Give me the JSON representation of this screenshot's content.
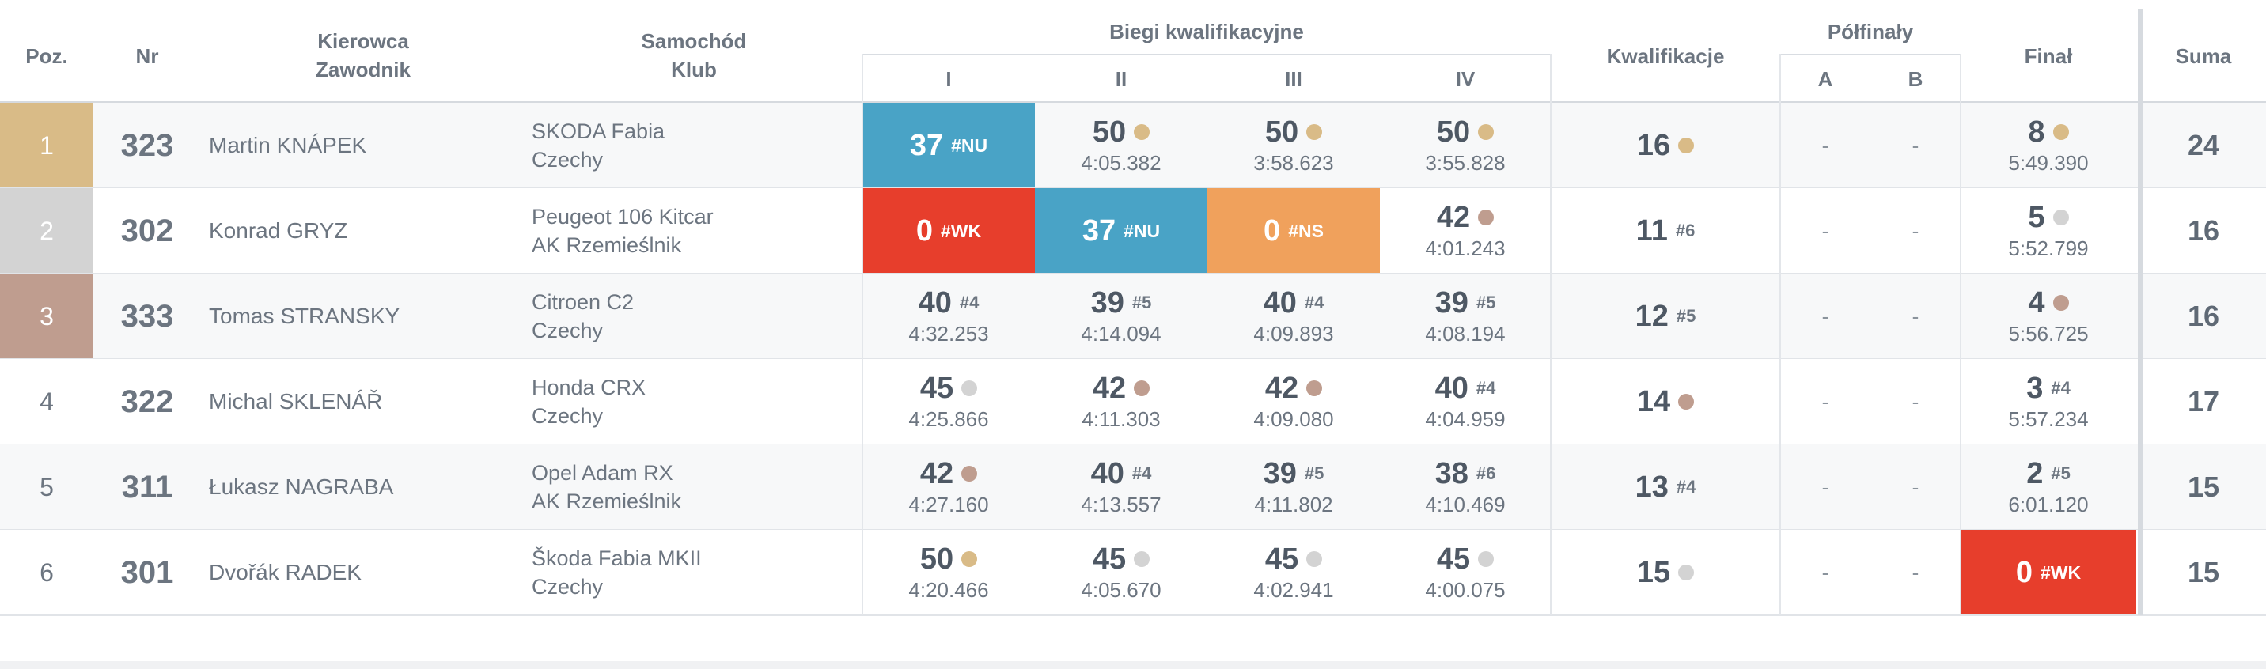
{
  "headers": {
    "pos": "Poz.",
    "nr": "Nr",
    "driver_line1": "Kierowca",
    "driver_line2": "Zawodnik",
    "car_line1": "Samochód",
    "car_line2": "Klub",
    "heats_group": "Biegi kwalifikacyjne",
    "heat_names": [
      "I",
      "II",
      "III",
      "IV"
    ],
    "qualification": "Kwalifikacje",
    "semifinals": "Półfinały",
    "semi_a": "A",
    "semi_b": "B",
    "final": "Finał",
    "sum": "Suma"
  },
  "colors": {
    "gold": "#d9bb87",
    "silver": "#d3d3d3",
    "bronze": "#bf9d8f",
    "status_nu": "#49a3c6",
    "status_wk": "#e73e2c",
    "status_ns": "#f0a15c"
  },
  "rows": [
    {
      "pos": "1",
      "medal": "gold",
      "nr": "323",
      "name": "Martin KNÁPEK",
      "car": "SKODA Fabia",
      "club": "Czechy",
      "heats": [
        {
          "points": "37",
          "rank": "#NU",
          "status": "nu",
          "time": ""
        },
        {
          "points": "50",
          "medal": "gold",
          "time": "4:05.382"
        },
        {
          "points": "50",
          "medal": "gold",
          "time": "3:58.623"
        },
        {
          "points": "50",
          "medal": "gold",
          "time": "3:55.828"
        }
      ],
      "qualification": {
        "points": "16",
        "medal": "gold"
      },
      "semi_a": "-",
      "semi_b": "-",
      "final": {
        "points": "8",
        "medal": "gold",
        "time": "5:49.390"
      },
      "sum": "24"
    },
    {
      "pos": "2",
      "medal": "silver",
      "nr": "302",
      "name": "Konrad GRYZ",
      "car": "Peugeot 106 Kitcar",
      "club": "AK Rzemieślnik",
      "heats": [
        {
          "points": "0",
          "rank": "#WK",
          "status": "wk",
          "time": ""
        },
        {
          "points": "37",
          "rank": "#NU",
          "status": "nu",
          "time": ""
        },
        {
          "points": "0",
          "rank": "#NS",
          "status": "ns",
          "time": ""
        },
        {
          "points": "42",
          "medal": "bronze",
          "time": "4:01.243"
        }
      ],
      "qualification": {
        "points": "11",
        "rank": "#6"
      },
      "semi_a": "-",
      "semi_b": "-",
      "final": {
        "points": "5",
        "medal": "silver",
        "time": "5:52.799"
      },
      "sum": "16"
    },
    {
      "pos": "3",
      "medal": "bronze",
      "nr": "333",
      "name": "Tomas STRANSKY",
      "car": "Citroen C2",
      "club": "Czechy",
      "heats": [
        {
          "points": "40",
          "rank": "#4",
          "time": "4:32.253"
        },
        {
          "points": "39",
          "rank": "#5",
          "time": "4:14.094"
        },
        {
          "points": "40",
          "rank": "#4",
          "time": "4:09.893"
        },
        {
          "points": "39",
          "rank": "#5",
          "time": "4:08.194"
        }
      ],
      "qualification": {
        "points": "12",
        "rank": "#5"
      },
      "semi_a": "-",
      "semi_b": "-",
      "final": {
        "points": "4",
        "medal": "bronze",
        "time": "5:56.725"
      },
      "sum": "16"
    },
    {
      "pos": "4",
      "nr": "322",
      "name": "Michal SKLENÁŘ",
      "car": "Honda CRX",
      "club": "Czechy",
      "heats": [
        {
          "points": "45",
          "medal": "silver",
          "time": "4:25.866"
        },
        {
          "points": "42",
          "medal": "bronze",
          "time": "4:11.303"
        },
        {
          "points": "42",
          "medal": "bronze",
          "time": "4:09.080"
        },
        {
          "points": "40",
          "rank": "#4",
          "time": "4:04.959"
        }
      ],
      "qualification": {
        "points": "14",
        "medal": "bronze"
      },
      "semi_a": "-",
      "semi_b": "-",
      "final": {
        "points": "3",
        "rank": "#4",
        "time": "5:57.234"
      },
      "sum": "17"
    },
    {
      "pos": "5",
      "nr": "311",
      "name": "Łukasz NAGRABA",
      "car": "Opel Adam RX",
      "club": "AK Rzemieślnik",
      "heats": [
        {
          "points": "42",
          "medal": "bronze",
          "time": "4:27.160"
        },
        {
          "points": "40",
          "rank": "#4",
          "time": "4:13.557"
        },
        {
          "points": "39",
          "rank": "#5",
          "time": "4:11.802"
        },
        {
          "points": "38",
          "rank": "#6",
          "time": "4:10.469"
        }
      ],
      "qualification": {
        "points": "13",
        "rank": "#4"
      },
      "semi_a": "-",
      "semi_b": "-",
      "final": {
        "points": "2",
        "rank": "#5",
        "time": "6:01.120"
      },
      "sum": "15"
    },
    {
      "pos": "6",
      "nr": "301",
      "name": "Dvořák RADEK",
      "car": "Škoda Fabia MKII",
      "club": "Czechy",
      "heats": [
        {
          "points": "50",
          "medal": "gold",
          "time": "4:20.466"
        },
        {
          "points": "45",
          "medal": "silver",
          "time": "4:05.670"
        },
        {
          "points": "45",
          "medal": "silver",
          "time": "4:02.941"
        },
        {
          "points": "45",
          "medal": "silver",
          "time": "4:00.075"
        }
      ],
      "qualification": {
        "points": "15",
        "medal": "silver"
      },
      "semi_a": "-",
      "semi_b": "-",
      "final": {
        "points": "0",
        "rank": "#WK",
        "status": "wk",
        "time": ""
      },
      "sum": "15"
    }
  ]
}
